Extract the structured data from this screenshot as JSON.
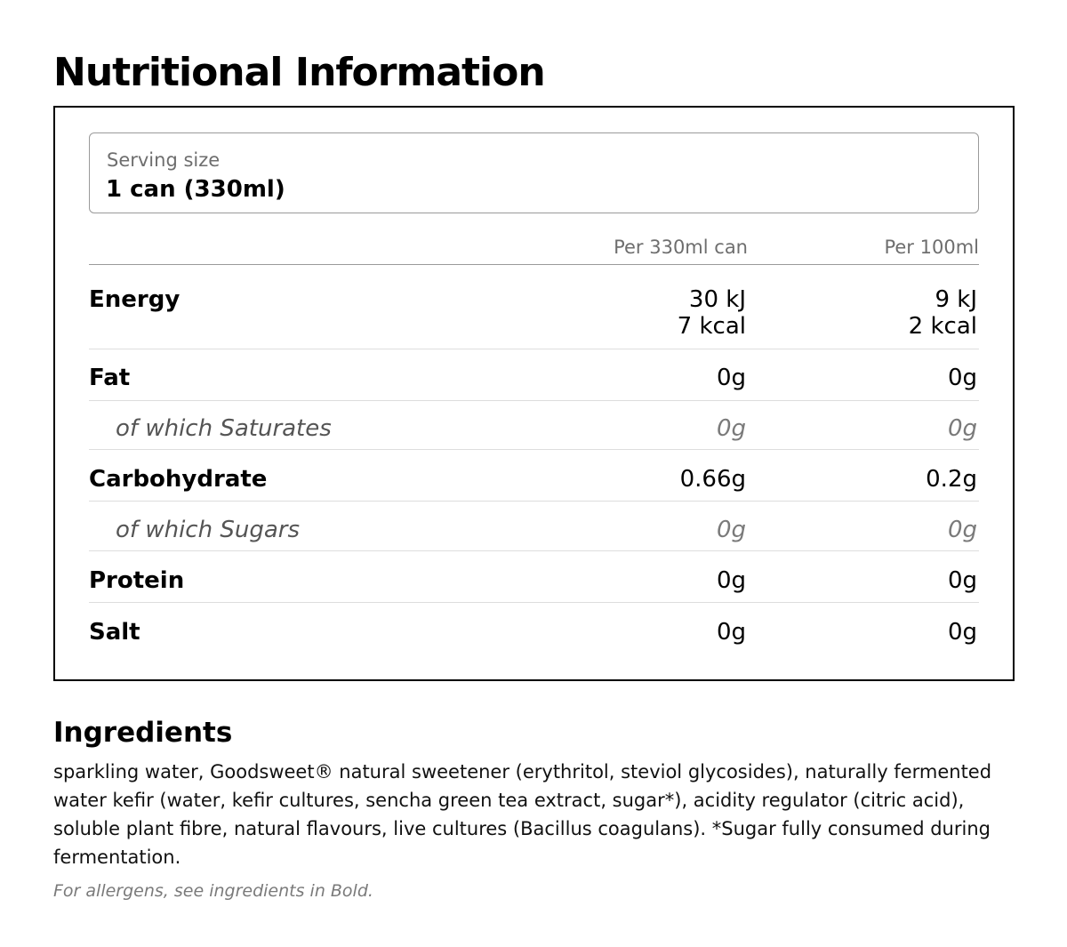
{
  "title": "Nutritional Information",
  "serving": {
    "label": "Serving size",
    "value": "1 can (330ml)"
  },
  "columns": {
    "per_can": "Per 330ml can",
    "per_100ml": "Per 100ml"
  },
  "rows": [
    {
      "label": "Energy",
      "per_can": "30 kJ",
      "per_can_2": "7 kcal",
      "per_100ml": "9 kJ",
      "per_100ml_2": "2 kcal",
      "sub": false
    },
    {
      "label": "Fat",
      "per_can": "0g",
      "per_100ml": "0g",
      "sub": false
    },
    {
      "label": "of which Saturates",
      "per_can": "0g",
      "per_100ml": "0g",
      "sub": true
    },
    {
      "label": "Carbohydrate",
      "per_can": "0.66g",
      "per_100ml": "0.2g",
      "sub": false
    },
    {
      "label": "of which Sugars",
      "per_can": "0g",
      "per_100ml": "0g",
      "sub": true
    },
    {
      "label": "Protein",
      "per_can": "0g",
      "per_100ml": "0g",
      "sub": false
    },
    {
      "label": "Salt",
      "per_can": "0g",
      "per_100ml": "0g",
      "sub": false
    }
  ],
  "ingredients": {
    "title": "Ingredients",
    "text": "sparkling water, Goodsweet® natural sweetener (erythritol, steviol glycosides), naturally fermented water kefir (water, kefir cultures, sencha green tea extract, sugar*), acidity regulator (citric acid), soluble plant fibre, natural flavours, live cultures (Bacillus coagulans). *Sugar fully consumed during fermentation.",
    "allergen_note": "For allergens, see ingredients in Bold."
  }
}
